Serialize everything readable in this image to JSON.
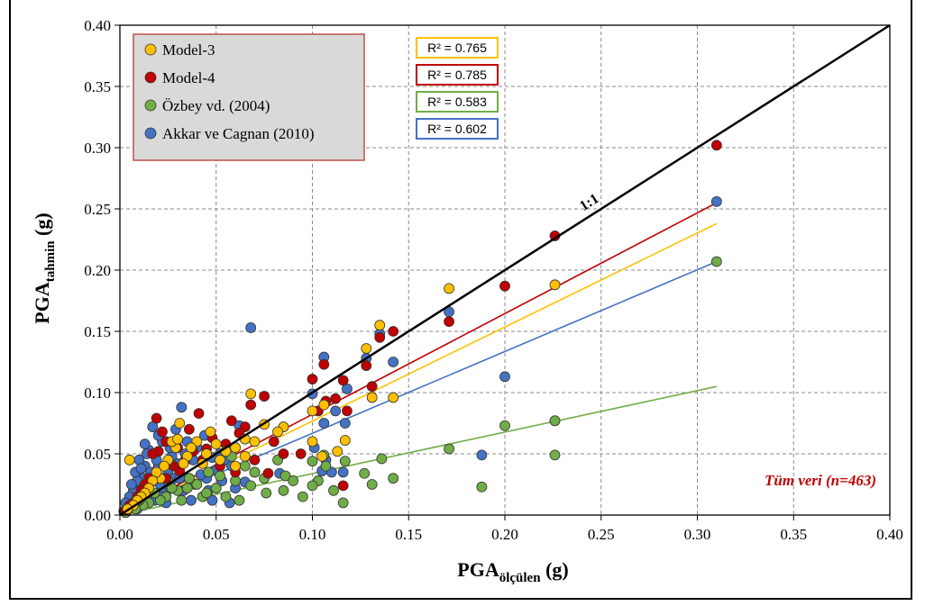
{
  "chart_data": {
    "type": "scatter",
    "xlabel": {
      "main": "PGA",
      "sub": "ölçülen",
      "unit": " (g)"
    },
    "ylabel": {
      "main": "PGA",
      "sub": "tahmin",
      "unit": " (g)"
    },
    "xlim": [
      0,
      0.4
    ],
    "ylim": [
      0,
      0.4
    ],
    "xticks": [
      "0.00",
      "0.05",
      "0.10",
      "0.15",
      "0.20",
      "0.25",
      "0.30",
      "0.35",
      "0.40"
    ],
    "yticks": [
      "0.00",
      "0.05",
      "0.10",
      "0.15",
      "0.20",
      "0.25",
      "0.30",
      "0.35",
      "0.40"
    ],
    "grid": true,
    "legend_position": "top-left",
    "annotation": "Tüm veri (n=463)",
    "identity_label": "1:1",
    "series": [
      {
        "name": "Akkar ve Cagnan (2010)",
        "color": "#4472C4",
        "r2": "R² = 0.602",
        "trend": [
          [
            0,
            0
          ],
          [
            0.31,
            0.207
          ]
        ],
        "points": [
          [
            0.31,
            0.256
          ],
          [
            0.2,
            0.113
          ],
          [
            0.226,
            0.077
          ],
          [
            0.188,
            0.049
          ],
          [
            0.171,
            0.166
          ],
          [
            0.142,
            0.125
          ],
          [
            0.135,
            0.148
          ],
          [
            0.128,
            0.128
          ],
          [
            0.118,
            0.103
          ],
          [
            0.112,
            0.085
          ],
          [
            0.106,
            0.129
          ],
          [
            0.1,
            0.099
          ],
          [
            0.106,
            0.075
          ],
          [
            0.101,
            0.055
          ],
          [
            0.068,
            0.153
          ],
          [
            0.105,
            0.036
          ],
          [
            0.11,
            0.035
          ],
          [
            0.116,
            0.035
          ],
          [
            0.107,
            0.045
          ],
          [
            0.117,
            0.075
          ],
          [
            0.083,
            0.034
          ],
          [
            0.07,
            0.035
          ],
          [
            0.062,
            0.073
          ],
          [
            0.055,
            0.045
          ],
          [
            0.06,
            0.022
          ],
          [
            0.048,
            0.047
          ],
          [
            0.045,
            0.03
          ],
          [
            0.04,
            0.055
          ],
          [
            0.037,
            0.012
          ],
          [
            0.032,
            0.088
          ],
          [
            0.029,
            0.07
          ],
          [
            0.027,
            0.048
          ],
          [
            0.025,
            0.035
          ],
          [
            0.022,
            0.06
          ],
          [
            0.02,
            0.04
          ],
          [
            0.018,
            0.028
          ],
          [
            0.017,
            0.072
          ],
          [
            0.015,
            0.053
          ],
          [
            0.013,
            0.04
          ],
          [
            0.012,
            0.03
          ],
          [
            0.011,
            0.022
          ],
          [
            0.01,
            0.015
          ],
          [
            0.009,
            0.028
          ],
          [
            0.008,
            0.012
          ],
          [
            0.007,
            0.02
          ],
          [
            0.006,
            0.008
          ],
          [
            0.005,
            0.015
          ],
          [
            0.004,
            0.005
          ],
          [
            0.003,
            0.01
          ],
          [
            0.002,
            0.003
          ],
          [
            0.014,
            0.05
          ],
          [
            0.016,
            0.035
          ],
          [
            0.019,
            0.045
          ],
          [
            0.021,
            0.025
          ],
          [
            0.023,
            0.018
          ],
          [
            0.026,
            0.055
          ],
          [
            0.028,
            0.03
          ],
          [
            0.03,
            0.042
          ],
          [
            0.033,
            0.02
          ],
          [
            0.035,
            0.06
          ],
          [
            0.038,
            0.045
          ],
          [
            0.042,
            0.033
          ],
          [
            0.044,
            0.065
          ],
          [
            0.046,
            0.02
          ],
          [
            0.05,
            0.037
          ],
          [
            0.052,
            0.05
          ],
          [
            0.057,
            0.01
          ],
          [
            0.058,
            0.04
          ],
          [
            0.065,
            0.027
          ],
          [
            0.012,
            0.018
          ],
          [
            0.018,
            0.012
          ],
          [
            0.024,
            0.01
          ],
          [
            0.008,
            0.035
          ],
          [
            0.01,
            0.045
          ],
          [
            0.013,
            0.058
          ],
          [
            0.015,
            0.025
          ],
          [
            0.02,
            0.065
          ],
          [
            0.022,
            0.015
          ],
          [
            0.026,
            0.022
          ],
          [
            0.031,
            0.03
          ],
          [
            0.034,
            0.05
          ],
          [
            0.039,
            0.025
          ],
          [
            0.043,
            0.015
          ],
          [
            0.048,
            0.012
          ],
          [
            0.053,
            0.028
          ],
          [
            0.009,
            0.005
          ],
          [
            0.006,
            0.025
          ],
          [
            0.011,
            0.038
          ]
        ]
      },
      {
        "name": "Özbey vd. (2004)",
        "color": "#70AD47",
        "r2": "R² = 0.583",
        "trend": [
          [
            0,
            0
          ],
          [
            0.31,
            0.105
          ]
        ],
        "points": [
          [
            0.31,
            0.207
          ],
          [
            0.2,
            0.073
          ],
          [
            0.226,
            0.077
          ],
          [
            0.226,
            0.049
          ],
          [
            0.188,
            0.023
          ],
          [
            0.171,
            0.054
          ],
          [
            0.142,
            0.03
          ],
          [
            0.136,
            0.046
          ],
          [
            0.131,
            0.025
          ],
          [
            0.127,
            0.034
          ],
          [
            0.117,
            0.044
          ],
          [
            0.116,
            0.01
          ],
          [
            0.111,
            0.02
          ],
          [
            0.107,
            0.04
          ],
          [
            0.106,
            0.049
          ],
          [
            0.103,
            0.028
          ],
          [
            0.1,
            0.024
          ],
          [
            0.1,
            0.044
          ],
          [
            0.095,
            0.015
          ],
          [
            0.086,
            0.032
          ],
          [
            0.085,
            0.02
          ],
          [
            0.082,
            0.045
          ],
          [
            0.076,
            0.018
          ],
          [
            0.07,
            0.035
          ],
          [
            0.065,
            0.04
          ],
          [
            0.06,
            0.028
          ],
          [
            0.058,
            0.048
          ],
          [
            0.055,
            0.015
          ],
          [
            0.05,
            0.022
          ],
          [
            0.046,
            0.035
          ],
          [
            0.043,
            0.015
          ],
          [
            0.04,
            0.025
          ],
          [
            0.036,
            0.03
          ],
          [
            0.032,
            0.012
          ],
          [
            0.03,
            0.02
          ],
          [
            0.027,
            0.022
          ],
          [
            0.024,
            0.015
          ],
          [
            0.021,
            0.012
          ],
          [
            0.018,
            0.018
          ],
          [
            0.015,
            0.01
          ],
          [
            0.012,
            0.008
          ],
          [
            0.01,
            0.012
          ],
          [
            0.008,
            0.005
          ],
          [
            0.006,
            0.008
          ],
          [
            0.004,
            0.004
          ],
          [
            0.003,
            0.002
          ],
          [
            0.02,
            0.03
          ],
          [
            0.025,
            0.028
          ],
          [
            0.035,
            0.022
          ],
          [
            0.045,
            0.018
          ],
          [
            0.052,
            0.032
          ],
          [
            0.062,
            0.012
          ],
          [
            0.068,
            0.024
          ],
          [
            0.075,
            0.03
          ],
          [
            0.09,
            0.028
          ]
        ]
      },
      {
        "name": "Model-4",
        "color": "#C00000",
        "r2": "R² = 0.785",
        "trend": [
          [
            0,
            0
          ],
          [
            0.31,
            0.255
          ]
        ],
        "points": [
          [
            0.31,
            0.302
          ],
          [
            0.226,
            0.228
          ],
          [
            0.2,
            0.187
          ],
          [
            0.171,
            0.158
          ],
          [
            0.142,
            0.15
          ],
          [
            0.135,
            0.145
          ],
          [
            0.131,
            0.105
          ],
          [
            0.128,
            0.122
          ],
          [
            0.118,
            0.085
          ],
          [
            0.116,
            0.11
          ],
          [
            0.116,
            0.024
          ],
          [
            0.112,
            0.095
          ],
          [
            0.106,
            0.123
          ],
          [
            0.107,
            0.093
          ],
          [
            0.1,
            0.111
          ],
          [
            0.103,
            0.085
          ],
          [
            0.094,
            0.05
          ],
          [
            0.085,
            0.05
          ],
          [
            0.08,
            0.06
          ],
          [
            0.075,
            0.097
          ],
          [
            0.068,
            0.09
          ],
          [
            0.065,
            0.072
          ],
          [
            0.062,
            0.067
          ],
          [
            0.058,
            0.077
          ],
          [
            0.055,
            0.058
          ],
          [
            0.048,
            0.063
          ],
          [
            0.045,
            0.054
          ],
          [
            0.043,
            0.045
          ],
          [
            0.041,
            0.083
          ],
          [
            0.038,
            0.052
          ],
          [
            0.034,
            0.045
          ],
          [
            0.031,
            0.036
          ],
          [
            0.028,
            0.04
          ],
          [
            0.026,
            0.042
          ],
          [
            0.024,
            0.03
          ],
          [
            0.022,
            0.068
          ],
          [
            0.02,
            0.052
          ],
          [
            0.019,
            0.079
          ],
          [
            0.017,
            0.05
          ],
          [
            0.015,
            0.03
          ],
          [
            0.013,
            0.025
          ],
          [
            0.011,
            0.02
          ],
          [
            0.009,
            0.015
          ],
          [
            0.007,
            0.01
          ],
          [
            0.005,
            0.008
          ],
          [
            0.003,
            0.004
          ],
          [
            0.07,
            0.045
          ],
          [
            0.077,
            0.034
          ],
          [
            0.06,
            0.035
          ],
          [
            0.052,
            0.04
          ],
          [
            0.036,
            0.07
          ],
          [
            0.03,
            0.055
          ],
          [
            0.024,
            0.06
          ]
        ]
      },
      {
        "name": "Model-3",
        "color": "#FFC000",
        "r2": "R² = 0.765",
        "trend": [
          [
            0,
            0
          ],
          [
            0.31,
            0.238
          ]
        ],
        "points": [
          [
            0.226,
            0.188
          ],
          [
            0.171,
            0.185
          ],
          [
            0.142,
            0.096
          ],
          [
            0.135,
            0.155
          ],
          [
            0.131,
            0.096
          ],
          [
            0.128,
            0.136
          ],
          [
            0.117,
            0.061
          ],
          [
            0.113,
            0.052
          ],
          [
            0.106,
            0.09
          ],
          [
            0.105,
            0.048
          ],
          [
            0.1,
            0.06
          ],
          [
            0.1,
            0.085
          ],
          [
            0.085,
            0.072
          ],
          [
            0.082,
            0.068
          ],
          [
            0.075,
            0.074
          ],
          [
            0.068,
            0.099
          ],
          [
            0.065,
            0.062
          ],
          [
            0.06,
            0.055
          ],
          [
            0.055,
            0.052
          ],
          [
            0.05,
            0.058
          ],
          [
            0.047,
            0.068
          ],
          [
            0.045,
            0.05
          ],
          [
            0.043,
            0.042
          ],
          [
            0.04,
            0.06
          ],
          [
            0.037,
            0.055
          ],
          [
            0.035,
            0.048
          ],
          [
            0.033,
            0.042
          ],
          [
            0.031,
            0.075
          ],
          [
            0.029,
            0.055
          ],
          [
            0.027,
            0.06
          ],
          [
            0.025,
            0.045
          ],
          [
            0.023,
            0.04
          ],
          [
            0.021,
            0.03
          ],
          [
            0.019,
            0.035
          ],
          [
            0.017,
            0.028
          ],
          [
            0.015,
            0.022
          ],
          [
            0.013,
            0.018
          ],
          [
            0.011,
            0.015
          ],
          [
            0.009,
            0.012
          ],
          [
            0.007,
            0.008
          ],
          [
            0.005,
            0.045
          ],
          [
            0.004,
            0.005
          ],
          [
            0.06,
            0.04
          ],
          [
            0.065,
            0.048
          ],
          [
            0.07,
            0.06
          ],
          [
            0.052,
            0.045
          ],
          [
            0.03,
            0.062
          ]
        ]
      }
    ],
    "legend_order": [
      "Model-3",
      "Model-4",
      "Özbey vd. (2004)",
      "Akkar ve Cagnan (2010)"
    ]
  }
}
